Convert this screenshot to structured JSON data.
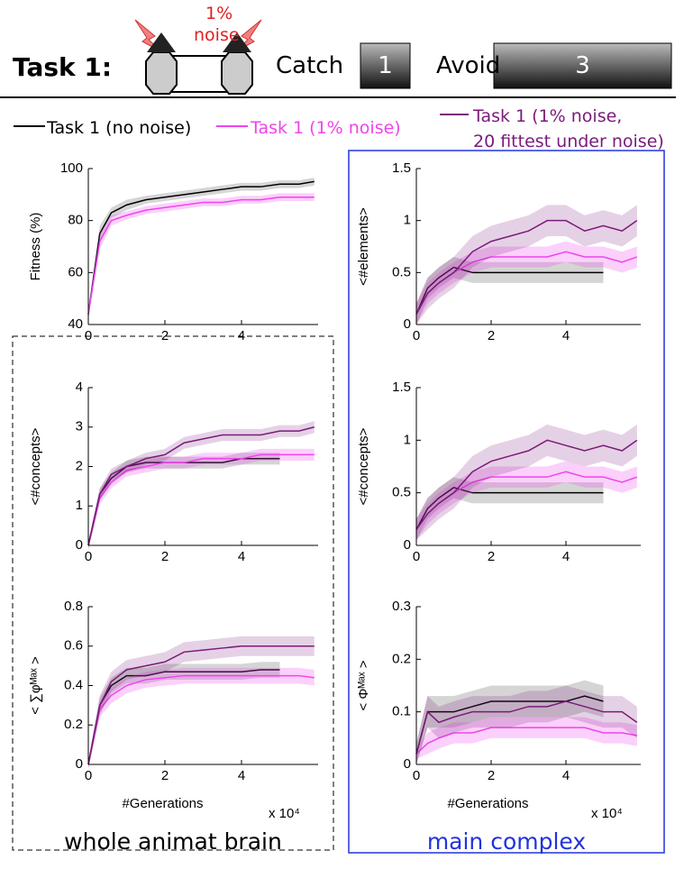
{
  "header": {
    "task": "Task 1:",
    "noise_pct": "1%",
    "noise": "noise",
    "catch": "Catch",
    "catch_value": "1",
    "avoid": "Avoid",
    "avoid_value": "3"
  },
  "legend": [
    {
      "name": "Task 1 (no noise)",
      "color": "#000000"
    },
    {
      "name": "Task 1 (1% noise)",
      "color": "#ee44ee"
    },
    {
      "name": "Task 1 (1% noise,\n20 fittest under noise)",
      "color": "#7b1a7b"
    }
  ],
  "captions": {
    "left": "whole animat brain",
    "right": "main complex"
  },
  "chart_data": [
    {
      "type": "line",
      "y_label": "Fitness (%)",
      "x": [
        0,
        0.3,
        0.6,
        1,
        1.5,
        2,
        2.5,
        3,
        3.5,
        4,
        4.5,
        5,
        5.5,
        5.9
      ],
      "xlim": [
        0,
        6
      ],
      "xticks": [
        0,
        2,
        4
      ],
      "ylim": [
        40,
        100
      ],
      "yticks": [
        40,
        60,
        80,
        100
      ],
      "series": [
        {
          "color": "#000000",
          "values": [
            44,
            75,
            83,
            86,
            88,
            89,
            90,
            91,
            92,
            93,
            93,
            94,
            94,
            95
          ],
          "err": [
            2,
            3,
            2,
            2,
            1.5,
            1.5,
            1.5,
            1.5,
            1.5,
            1.5,
            1.5,
            1.5,
            1.5,
            1.5
          ]
        },
        {
          "color": "#ee44ee",
          "values": [
            44,
            72,
            80,
            82,
            84,
            85,
            86,
            87,
            87,
            88,
            88,
            89,
            89,
            89
          ],
          "err": [
            2,
            3,
            2,
            1.5,
            1.5,
            1.5,
            1.5,
            1.5,
            1.5,
            1.5,
            1.5,
            1.5,
            1.5,
            1.5
          ]
        }
      ]
    },
    {
      "type": "line",
      "y_label": "<#elements>",
      "x": [
        0,
        0.3,
        0.6,
        1,
        1.5,
        2,
        2.5,
        3,
        3.5,
        4,
        4.5,
        5,
        5.5,
        5.9
      ],
      "xlim": [
        0,
        6
      ],
      "xticks": [
        0,
        2,
        4
      ],
      "ylim": [
        0,
        1.5
      ],
      "yticks": [
        0,
        0.5,
        1,
        1.5
      ],
      "series": [
        {
          "color": "#000000",
          "values": [
            0.1,
            0.35,
            0.45,
            0.55,
            0.5,
            0.5,
            0.5,
            0.5,
            0.5,
            0.5,
            0.5,
            0.5,
            null,
            null
          ],
          "err": [
            0.1,
            0.1,
            0.1,
            0.1,
            0.1,
            0.1,
            0.1,
            0.1,
            0.1,
            0.1,
            0.1,
            0.1,
            null,
            null
          ]
        },
        {
          "color": "#ee44ee",
          "values": [
            0.1,
            0.3,
            0.4,
            0.5,
            0.6,
            0.65,
            0.65,
            0.65,
            0.65,
            0.7,
            0.65,
            0.65,
            0.6,
            0.65
          ],
          "err": [
            0.1,
            0.1,
            0.1,
            0.1,
            0.1,
            0.1,
            0.1,
            0.1,
            0.1,
            0.1,
            0.1,
            0.1,
            0.1,
            0.1
          ]
        },
        {
          "color": "#7b1a7b",
          "values": [
            0.1,
            0.3,
            0.4,
            0.5,
            0.7,
            0.8,
            0.85,
            0.9,
            1,
            1,
            0.9,
            0.95,
            0.9,
            1
          ],
          "err": [
            0.1,
            0.15,
            0.15,
            0.15,
            0.15,
            0.15,
            0.15,
            0.15,
            0.15,
            0.15,
            0.15,
            0.15,
            0.15,
            0.15
          ]
        }
      ]
    },
    {
      "type": "line",
      "y_label": "<#concepts>",
      "x": [
        0,
        0.3,
        0.6,
        1,
        1.5,
        2,
        2.5,
        3,
        3.5,
        4,
        4.5,
        5,
        5.5,
        5.9
      ],
      "xlim": [
        0,
        6
      ],
      "xticks": [
        0,
        2,
        4
      ],
      "ylim": [
        0,
        4
      ],
      "yticks": [
        0,
        1,
        2,
        3,
        4
      ],
      "series": [
        {
          "color": "#000000",
          "values": [
            0,
            1.3,
            1.7,
            2,
            2.1,
            2.1,
            2.1,
            2.1,
            2.1,
            2.2,
            2.2,
            2.2,
            null,
            null
          ],
          "err": [
            0.1,
            0.15,
            0.15,
            0.15,
            0.15,
            0.15,
            0.15,
            0.15,
            0.15,
            0.15,
            0.15,
            0.15,
            null,
            null
          ]
        },
        {
          "color": "#ee44ee",
          "values": [
            0,
            1.2,
            1.6,
            1.9,
            2,
            2.1,
            2.1,
            2.2,
            2.2,
            2.2,
            2.3,
            2.3,
            2.3,
            2.3
          ],
          "err": [
            0.1,
            0.15,
            0.15,
            0.15,
            0.15,
            0.15,
            0.15,
            0.15,
            0.15,
            0.15,
            0.15,
            0.15,
            0.15,
            0.15
          ]
        },
        {
          "color": "#7b1a7b",
          "values": [
            0,
            1.3,
            1.8,
            2,
            2.2,
            2.3,
            2.6,
            2.7,
            2.8,
            2.8,
            2.8,
            2.9,
            2.9,
            3
          ],
          "err": [
            0.1,
            0.15,
            0.15,
            0.15,
            0.15,
            0.15,
            0.15,
            0.15,
            0.15,
            0.15,
            0.15,
            0.15,
            0.15,
            0.15
          ]
        }
      ]
    },
    {
      "type": "line",
      "y_label": "<#concepts>",
      "x": [
        0,
        0.3,
        0.6,
        1,
        1.5,
        2,
        2.5,
        3,
        3.5,
        4,
        4.5,
        5,
        5.5,
        5.9
      ],
      "xlim": [
        0,
        6
      ],
      "xticks": [
        0,
        2,
        4
      ],
      "ylim": [
        0,
        1.5
      ],
      "yticks": [
        0,
        0.5,
        1,
        1.5
      ],
      "series": [
        {
          "color": "#000000",
          "values": [
            0.15,
            0.35,
            0.45,
            0.55,
            0.5,
            0.5,
            0.5,
            0.5,
            0.5,
            0.5,
            0.5,
            0.5,
            null,
            null
          ],
          "err": [
            0.1,
            0.1,
            0.1,
            0.1,
            0.1,
            0.1,
            0.1,
            0.1,
            0.1,
            0.1,
            0.1,
            0.1,
            null,
            null
          ]
        },
        {
          "color": "#ee44ee",
          "values": [
            0.15,
            0.3,
            0.4,
            0.5,
            0.6,
            0.65,
            0.65,
            0.65,
            0.65,
            0.7,
            0.65,
            0.65,
            0.6,
            0.65
          ],
          "err": [
            0.1,
            0.1,
            0.1,
            0.1,
            0.1,
            0.1,
            0.1,
            0.1,
            0.1,
            0.1,
            0.1,
            0.1,
            0.1,
            0.1
          ]
        },
        {
          "color": "#7b1a7b",
          "values": [
            0.15,
            0.3,
            0.4,
            0.5,
            0.7,
            0.8,
            0.85,
            0.9,
            1,
            0.95,
            0.9,
            0.95,
            0.9,
            1
          ],
          "err": [
            0.1,
            0.15,
            0.15,
            0.15,
            0.15,
            0.15,
            0.15,
            0.15,
            0.15,
            0.15,
            0.15,
            0.15,
            0.15,
            0.15
          ]
        }
      ]
    },
    {
      "type": "line",
      "y_label": "< ∑φᴹᵃˣ >",
      "x_label": "#Generations",
      "x_multiplier": "x 10⁴",
      "x": [
        0,
        0.3,
        0.6,
        1,
        1.5,
        2,
        2.5,
        3,
        3.5,
        4,
        4.5,
        5,
        5.5,
        5.9
      ],
      "xlim": [
        0,
        6
      ],
      "xticks": [
        0,
        2,
        4
      ],
      "ylim": [
        0,
        0.8
      ],
      "yticks": [
        0,
        0.2,
        0.4,
        0.6,
        0.8
      ],
      "series": [
        {
          "color": "#000000",
          "values": [
            0,
            0.3,
            0.4,
            0.45,
            0.45,
            0.47,
            0.47,
            0.47,
            0.47,
            0.47,
            0.48,
            0.48,
            null,
            null
          ],
          "err": [
            0.02,
            0.04,
            0.04,
            0.04,
            0.04,
            0.04,
            0.04,
            0.04,
            0.04,
            0.04,
            0.04,
            0.04,
            null,
            null
          ]
        },
        {
          "color": "#ee44ee",
          "values": [
            0,
            0.28,
            0.35,
            0.4,
            0.43,
            0.44,
            0.45,
            0.45,
            0.45,
            0.45,
            0.45,
            0.45,
            0.45,
            0.44
          ],
          "err": [
            0.02,
            0.04,
            0.04,
            0.04,
            0.04,
            0.04,
            0.04,
            0.04,
            0.04,
            0.04,
            0.04,
            0.04,
            0.04,
            0.04
          ]
        },
        {
          "color": "#7b1a7b",
          "values": [
            0,
            0.3,
            0.42,
            0.48,
            0.5,
            0.52,
            0.57,
            0.58,
            0.59,
            0.6,
            0.6,
            0.6,
            0.6,
            0.6
          ],
          "err": [
            0.02,
            0.05,
            0.05,
            0.05,
            0.05,
            0.05,
            0.05,
            0.05,
            0.05,
            0.05,
            0.05,
            0.05,
            0.05,
            0.05
          ]
        }
      ]
    },
    {
      "type": "line",
      "y_label": "< Φᴹᵃˣ >",
      "x_label": "#Generations",
      "x_multiplier": "x 10⁴",
      "x": [
        0,
        0.3,
        0.6,
        1,
        1.5,
        2,
        2.5,
        3,
        3.5,
        4,
        4.5,
        5,
        5.5,
        5.9
      ],
      "xlim": [
        0,
        6
      ],
      "xticks": [
        0,
        2,
        4
      ],
      "ylim": [
        0,
        0.3
      ],
      "yticks": [
        0,
        0.1,
        0.2,
        0.3
      ],
      "series": [
        {
          "color": "#000000",
          "values": [
            0.02,
            0.1,
            0.1,
            0.1,
            0.11,
            0.12,
            0.12,
            0.12,
            0.12,
            0.12,
            0.13,
            0.12,
            null,
            null
          ],
          "err": [
            0.02,
            0.03,
            0.03,
            0.03,
            0.03,
            0.03,
            0.03,
            0.03,
            0.03,
            0.03,
            0.03,
            0.03,
            null,
            null
          ]
        },
        {
          "color": "#ee44ee",
          "values": [
            0.02,
            0.04,
            0.05,
            0.06,
            0.06,
            0.07,
            0.07,
            0.07,
            0.07,
            0.07,
            0.07,
            0.06,
            0.06,
            0.055
          ],
          "err": [
            0.01,
            0.02,
            0.02,
            0.02,
            0.02,
            0.02,
            0.02,
            0.02,
            0.02,
            0.02,
            0.02,
            0.02,
            0.02,
            0.02
          ]
        },
        {
          "color": "#7b1a7b",
          "values": [
            0.02,
            0.1,
            0.08,
            0.09,
            0.1,
            0.1,
            0.1,
            0.11,
            0.11,
            0.12,
            0.11,
            0.1,
            0.1,
            0.08
          ],
          "err": [
            0.02,
            0.03,
            0.03,
            0.03,
            0.03,
            0.03,
            0.03,
            0.03,
            0.03,
            0.03,
            0.03,
            0.03,
            0.03,
            0.03
          ]
        }
      ]
    }
  ]
}
